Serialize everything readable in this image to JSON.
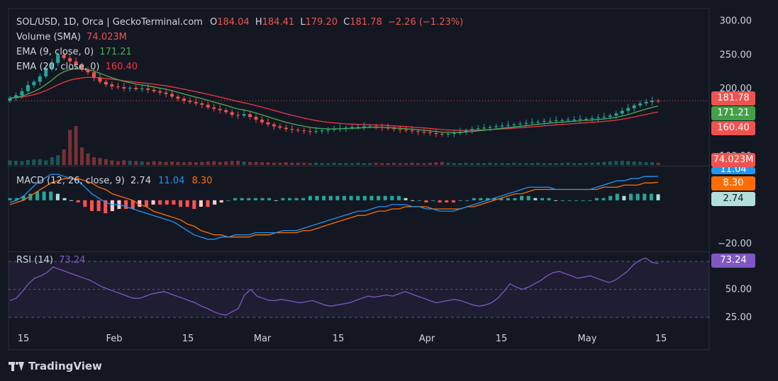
{
  "header": {
    "symbol": "SOL/USD, 1D, Orca | GeckoTerminal.com",
    "o_label": "O",
    "o_value": "184.04",
    "h_label": "H",
    "h_value": "184.41",
    "l_label": "L",
    "l_value": "179.20",
    "c_label": "C",
    "c_value": "181.78",
    "change": "−2.26 (−1.23%)"
  },
  "legend": {
    "volume_label": "Volume (SMA)",
    "volume_value": "74.023M",
    "ema9_label": "EMA (9, close, 0)",
    "ema9_value": "171.21",
    "ema20_label": "EMA (20, close, 0)",
    "ema20_value": "160.40",
    "macd_label": "MACD (12, 26, close, 9)",
    "macd_hist": "2.74",
    "macd_line": "11.04",
    "macd_signal": "8.30",
    "rsi_label": "RSI (14)",
    "rsi_value": "73.24"
  },
  "price_axis": {
    "ticks": [
      "300.00",
      "250.00",
      "200.00",
      "100.00"
    ]
  },
  "macd_axis": {
    "ticks": [
      "0.00",
      "−20.00"
    ]
  },
  "rsi_axis": {
    "ticks": [
      "75.00",
      "50.00",
      "25.00"
    ]
  },
  "tags": {
    "close": "181.78",
    "ema9": "171.21",
    "ema20": "160.40",
    "volume": "74.023M",
    "macd_line": "11.04",
    "macd_signal": "8.30",
    "macd_hist": "2.74",
    "rsi": "73.24"
  },
  "x_axis": {
    "labels": [
      "15",
      "Feb",
      "15",
      "Mar",
      "15",
      "Apr",
      "15",
      "May",
      "15"
    ]
  },
  "brand": {
    "name": "TradingView"
  },
  "colors": {
    "up": "#26a69a",
    "down": "#ef5350",
    "ema9": "#4caf50",
    "ema20": "#f23645",
    "macd": "#2962ff",
    "signal": "#ff6d00",
    "rsi": "#7e57c2"
  },
  "chart_data": [
    {
      "type": "candlestick",
      "title": "SOL/USD, 1D, Orca | GeckoTerminal.com",
      "x_range": [
        "2024-01-13",
        "2024-05-14"
      ],
      "ylim": [
        90,
        310
      ],
      "ticks": [
        100,
        200,
        250,
        300
      ],
      "closes": [
        186,
        190,
        196,
        205,
        210,
        218,
        230,
        238,
        250,
        245,
        240,
        235,
        228,
        224,
        216,
        210,
        206,
        203,
        202,
        200,
        201,
        199,
        200,
        198,
        196,
        194,
        192,
        188,
        185,
        182,
        180,
        178,
        176,
        172,
        170,
        168,
        165,
        161,
        160,
        162,
        158,
        154,
        150,
        147,
        144,
        142,
        140,
        139,
        138,
        137,
        136,
        137,
        138,
        139,
        140,
        141,
        142,
        143,
        143,
        144,
        144,
        143,
        142,
        141,
        140,
        139,
        138,
        137,
        136,
        135,
        134,
        133,
        132,
        133,
        134,
        136,
        138,
        140,
        141,
        142,
        143,
        144,
        145,
        146,
        147,
        148,
        149,
        150,
        151,
        152,
        152,
        153,
        153,
        154,
        154,
        155,
        155,
        156,
        157,
        158,
        160,
        163,
        167,
        171,
        175,
        178,
        180,
        182,
        181.78
      ],
      "last": {
        "open": 184.04,
        "high": 184.41,
        "low": 179.2,
        "close": 181.78
      },
      "ema9_last": 171.21,
      "ema20_last": 160.4
    },
    {
      "type": "bar",
      "title": "Volume (SMA)",
      "last": "74.023M",
      "relative_values": [
        0.12,
        0.11,
        0.1,
        0.13,
        0.14,
        0.15,
        0.12,
        0.2,
        0.25,
        0.4,
        0.9,
        1.0,
        0.45,
        0.3,
        0.2,
        0.18,
        0.15,
        0.12,
        0.1,
        0.12,
        0.11,
        0.1,
        0.09,
        0.08,
        0.1,
        0.09,
        0.08,
        0.09,
        0.08,
        0.07,
        0.08,
        0.07,
        0.08,
        0.09,
        0.1,
        0.08,
        0.09,
        0.1,
        0.11,
        0.09,
        0.08,
        0.08,
        0.07,
        0.07,
        0.06,
        0.06,
        0.07,
        0.06,
        0.06,
        0.06,
        0.05,
        0.06,
        0.05,
        0.05,
        0.06,
        0.05,
        0.05,
        0.05,
        0.06,
        0.05,
        0.05,
        0.06,
        0.05,
        0.05,
        0.06,
        0.05,
        0.05,
        0.06,
        0.05,
        0.05,
        0.06,
        0.07,
        0.08,
        0.06,
        0.05,
        0.05,
        0.06,
        0.05,
        0.05,
        0.05,
        0.06,
        0.05,
        0.05,
        0.05,
        0.06,
        0.05,
        0.05,
        0.05,
        0.06,
        0.05,
        0.05,
        0.05,
        0.05,
        0.06,
        0.05,
        0.05,
        0.06,
        0.06,
        0.07,
        0.08,
        0.09,
        0.1,
        0.11,
        0.1,
        0.09,
        0.08,
        0.07,
        0.07,
        0.06
      ]
    },
    {
      "type": "line",
      "title": "MACD (12, 26, close, 9)",
      "ylim": [
        -22,
        14
      ],
      "ticks": [
        0,
        -20
      ],
      "macd": [
        -1,
        0,
        2,
        5,
        8,
        10,
        12,
        12,
        11,
        10,
        9,
        6,
        3,
        1,
        -1,
        -2,
        -2,
        -3,
        -4,
        -5,
        -6,
        -7,
        -8,
        -9,
        -10,
        -12,
        -14,
        -16,
        -17,
        -18,
        -18,
        -17,
        -17,
        -16,
        -16,
        -16,
        -15,
        -15,
        -15,
        -15,
        -14,
        -14,
        -14,
        -13,
        -12,
        -11,
        -10,
        -9,
        -8,
        -7,
        -6,
        -5,
        -5,
        -4,
        -3,
        -3,
        -2,
        -2,
        -2,
        -3,
        -3,
        -4,
        -4,
        -5,
        -5,
        -5,
        -4,
        -3,
        -2,
        -1,
        0,
        1,
        2,
        3,
        4,
        5,
        6,
        6,
        6,
        6,
        5,
        5,
        5,
        5,
        5,
        5,
        6,
        7,
        8,
        9,
        9,
        10,
        10,
        11,
        11,
        11.04
      ],
      "signal": [
        -2,
        -1,
        0,
        2,
        4,
        6,
        8,
        9,
        10,
        10,
        10,
        9,
        8,
        6,
        5,
        3,
        2,
        1,
        0,
        -2,
        -3,
        -5,
        -6,
        -7,
        -8,
        -9,
        -11,
        -12,
        -14,
        -15,
        -16,
        -16,
        -17,
        -17,
        -17,
        -17,
        -16,
        -16,
        -16,
        -15,
        -15,
        -15,
        -15,
        -14,
        -14,
        -13,
        -12,
        -11,
        -10,
        -9,
        -8,
        -7,
        -7,
        -6,
        -5,
        -5,
        -4,
        -4,
        -3,
        -3,
        -3,
        -3,
        -4,
        -4,
        -4,
        -4,
        -4,
        -3,
        -3,
        -2,
        -1,
        0,
        1,
        2,
        3,
        3,
        4,
        5,
        5,
        5,
        5,
        5,
        5,
        5,
        5,
        5,
        5,
        6,
        6,
        6,
        7,
        7,
        7,
        8,
        8,
        8.3
      ],
      "hist_last": 2.74,
      "macd_last": 11.04,
      "signal_last": 8.3
    },
    {
      "type": "line",
      "title": "RSI (14)",
      "ylim": [
        20,
        82
      ],
      "ticks": [
        75,
        50,
        25
      ],
      "values": [
        40,
        42,
        48,
        55,
        60,
        62,
        65,
        70,
        68,
        66,
        64,
        62,
        60,
        58,
        55,
        52,
        50,
        48,
        46,
        44,
        42,
        42,
        44,
        46,
        47,
        48,
        46,
        44,
        42,
        40,
        38,
        35,
        33,
        30,
        28,
        27,
        30,
        33,
        45,
        50,
        44,
        42,
        40,
        40,
        41,
        40,
        39,
        38,
        39,
        40,
        38,
        36,
        35,
        36,
        37,
        38,
        40,
        42,
        44,
        43,
        44,
        45,
        44,
        46,
        48,
        46,
        44,
        42,
        40,
        38,
        39,
        40,
        41,
        40,
        38,
        36,
        35,
        36,
        38,
        42,
        48,
        55,
        52,
        50,
        52,
        55,
        58,
        62,
        65,
        66,
        64,
        62,
        60,
        61,
        62,
        60,
        58,
        56,
        58,
        62,
        66,
        72,
        76,
        78,
        74,
        73.24
      ],
      "last": 73.24
    }
  ]
}
